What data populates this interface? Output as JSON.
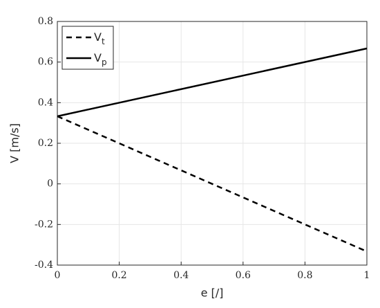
{
  "chart_data": {
    "type": "line",
    "x_label": "e [/]",
    "y_label": "V [m/s]",
    "x": [
      0,
      1
    ],
    "series": [
      {
        "name": "Vt",
        "color": "#000000",
        "linestyle": "dashed",
        "values": [
          0.333,
          -0.333
        ]
      },
      {
        "name": "Vp",
        "color": "#000000",
        "linestyle": "solid",
        "values": [
          0.333,
          0.667
        ]
      }
    ],
    "xlim": [
      0,
      1
    ],
    "xticks": [
      0,
      0.2,
      0.4,
      0.6,
      0.8,
      1
    ],
    "ylim": [
      -0.4,
      0.8
    ],
    "yticks": [
      -0.4,
      -0.2,
      0,
      0.2,
      0.4,
      0.6,
      0.8
    ],
    "grid": true,
    "legend": "upper-left"
  }
}
